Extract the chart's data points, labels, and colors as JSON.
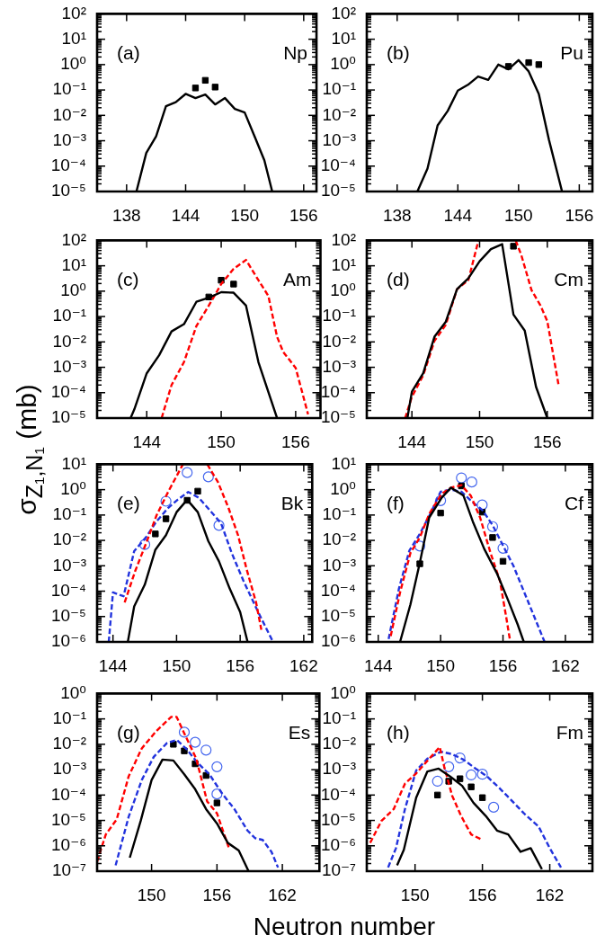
{
  "chart_data": [
    {
      "type": "line",
      "annotations": [
        "(a)",
        "Np"
      ],
      "log": "y",
      "xlim": [
        135,
        157.3
      ],
      "xticks": [
        138,
        144,
        150,
        156
      ],
      "ylim": [
        1e-05,
        100
      ],
      "yticks": [
        {
          "value": 1e-05,
          "label": "10⁻⁵"
        },
        {
          "value": 0.0001,
          "label": "10⁻⁴"
        },
        {
          "value": 0.001,
          "label": "10⁻³"
        },
        {
          "value": 0.01,
          "label": "10⁻²"
        },
        {
          "value": 0.1,
          "label": "10⁻¹"
        },
        {
          "value": 1,
          "label": "10⁰"
        },
        {
          "value": 10,
          "label": "10¹"
        },
        {
          "value": 100,
          "label": "10²"
        }
      ],
      "series": [
        {
          "type": "line",
          "color": "#000000",
          "line_style": "solid",
          "x": [
            139,
            140,
            141,
            142,
            143,
            144,
            145,
            146,
            147,
            148,
            149,
            150,
            151,
            152,
            152.8
          ],
          "values": [
            1e-05,
            0.00033,
            0.0015,
            0.023,
            0.033,
            0.07,
            0.048,
            0.066,
            0.027,
            0.048,
            0.018,
            0.013,
            0.0015,
            0.00017,
            1e-05
          ]
        },
        {
          "type": "scatter",
          "color": "#000000",
          "marker": "square",
          "x": [
            145,
            146,
            147
          ],
          "values": [
            0.12,
            0.24,
            0.13
          ]
        }
      ]
    },
    {
      "type": "line",
      "annotations": [
        "(b)",
        "Pu"
      ],
      "log": "y",
      "xlim": [
        135,
        157.3
      ],
      "xticks": [
        138,
        144,
        150,
        156
      ],
      "ylim": [
        1e-05,
        100
      ],
      "yticks": [
        {
          "value": 1e-05,
          "label": "10⁻⁵"
        },
        {
          "value": 0.0001,
          "label": "10⁻⁴"
        },
        {
          "value": 0.001,
          "label": "10⁻³"
        },
        {
          "value": 0.01,
          "label": "10⁻²"
        },
        {
          "value": 0.1,
          "label": "10⁻¹"
        },
        {
          "value": 1,
          "label": "10⁰"
        },
        {
          "value": 10,
          "label": "10¹"
        },
        {
          "value": 100,
          "label": "10²"
        }
      ],
      "series": [
        {
          "type": "line",
          "color": "#000000",
          "line_style": "solid",
          "x": [
            140,
            141,
            142,
            143,
            144,
            145,
            146,
            147,
            148,
            149,
            150,
            151,
            152,
            153,
            154.3
          ],
          "values": [
            1e-05,
            8e-05,
            0.004,
            0.015,
            0.095,
            0.16,
            0.34,
            0.25,
            1.0,
            0.65,
            1.5,
            0.54,
            0.07,
            0.0011,
            1e-05
          ]
        },
        {
          "type": "scatter",
          "color": "#000000",
          "marker": "square",
          "x": [
            149,
            151,
            152
          ],
          "values": [
            0.85,
            1.2,
            1.0
          ]
        }
      ]
    },
    {
      "type": "line",
      "annotations": [
        "(c)",
        "Am"
      ],
      "log": "y",
      "xlim": [
        140,
        158
      ],
      "xticks": [
        144,
        150,
        156
      ],
      "ylim": [
        1e-05,
        100
      ],
      "yticks": [
        {
          "value": 1e-05,
          "label": "10⁻⁵"
        },
        {
          "value": 0.0001,
          "label": "10⁻⁴"
        },
        {
          "value": 0.001,
          "label": "10⁻³"
        },
        {
          "value": 0.01,
          "label": "10⁻²"
        },
        {
          "value": 0.1,
          "label": "10⁻¹"
        },
        {
          "value": 1,
          "label": "10⁰"
        },
        {
          "value": 10,
          "label": "10¹"
        },
        {
          "value": 100,
          "label": "10²"
        }
      ],
      "series": [
        {
          "type": "line",
          "color": "#000000",
          "line_style": "solid",
          "x": [
            142.7,
            143,
            144,
            145,
            146,
            147,
            148,
            149,
            150,
            151,
            152,
            153,
            154.5
          ],
          "values": [
            1e-05,
            2.2e-05,
            0.00058,
            0.003,
            0.026,
            0.05,
            0.38,
            0.55,
            0.91,
            0.87,
            0.27,
            0.0016,
            1e-05
          ]
        },
        {
          "type": "line",
          "color": "#ff0000",
          "line_style": "dashed",
          "x": [
            145.2,
            146,
            147,
            148,
            149,
            150,
            151,
            152,
            153,
            153.8,
            154.5,
            155,
            156,
            157
          ],
          "values": [
            1e-05,
            0.0002,
            0.0016,
            0.042,
            0.27,
            1.9,
            7.6,
            17,
            2.7,
            0.65,
            0.016,
            0.004,
            0.00095,
            1.4e-05
          ]
        },
        {
          "type": "scatter",
          "color": "#000000",
          "marker": "square",
          "x": [
            149,
            150,
            151
          ],
          "values": [
            0.59,
            2.7,
            1.9
          ]
        }
      ]
    },
    {
      "type": "line",
      "annotations": [
        "(d)",
        "Cm"
      ],
      "log": "y",
      "xlim": [
        140,
        160
      ],
      "xticks": [
        144,
        150,
        156
      ],
      "ylim": [
        1e-05,
        100
      ],
      "yticks": [
        {
          "value": 1e-05,
          "label": "10⁻⁵"
        },
        {
          "value": 0.0001,
          "label": "10⁻⁴"
        },
        {
          "value": 0.001,
          "label": "10⁻³"
        },
        {
          "value": 0.01,
          "label": "10⁻²"
        },
        {
          "value": 0.1,
          "label": "10⁻¹"
        },
        {
          "value": 1,
          "label": "10⁰"
        },
        {
          "value": 10,
          "label": "10¹"
        },
        {
          "value": 100,
          "label": "10²"
        }
      ],
      "series": [
        {
          "type": "line",
          "color": "#000000",
          "line_style": "solid",
          "x": [
            143.6,
            144,
            145,
            146,
            147,
            148,
            149,
            150,
            151,
            152,
            153,
            154,
            155,
            156
          ],
          "values": [
            1e-05,
            0.00011,
            0.00058,
            0.016,
            0.062,
            1.2,
            3.2,
            15,
            45,
            71,
            0.12,
            0.028,
            0.00017,
            1e-05
          ]
        },
        {
          "type": "line",
          "color": "#ff0000",
          "line_style": "dashed",
          "x": [
            143.4,
            144,
            145,
            146,
            147,
            148,
            149,
            149.9,
            150,
            151,
            152,
            153.2,
            153.7,
            154.6,
            155.4,
            156,
            157
          ],
          "values": [
            1e-05,
            6.9e-05,
            0.00048,
            0.011,
            0.047,
            1.2,
            2.7,
            100,
            null,
            null,
            null,
            100,
            26,
            1.1,
            0.27,
            0.066,
            0.0002
          ]
        },
        {
          "type": "scatter",
          "color": "#000000",
          "marker": "square",
          "x": [
            153
          ],
          "values": [
            59
          ]
        }
      ]
    },
    {
      "type": "line",
      "annotations": [
        "(e)",
        "Bk"
      ],
      "ylabel": "σ$_{Z₁,N₁}$ (mb)",
      "log": "y",
      "xlim": [
        142.5,
        162.8
      ],
      "xticks": [
        144,
        150,
        156,
        162
      ],
      "ylim": [
        1e-06,
        10
      ],
      "yticks": [
        {
          "value": 1e-06,
          "label": "10⁻⁶"
        },
        {
          "value": 1e-05,
          "label": "10⁻⁵"
        },
        {
          "value": 0.0001,
          "label": "10⁻⁴"
        },
        {
          "value": 0.001,
          "label": "10⁻³"
        },
        {
          "value": 0.01,
          "label": "10⁻²"
        },
        {
          "value": 0.1,
          "label": "10⁻¹"
        },
        {
          "value": 1,
          "label": "10⁰"
        },
        {
          "value": 10,
          "label": "10¹"
        }
      ],
      "series": [
        {
          "type": "line",
          "color": "#000000",
          "line_style": "solid",
          "x": [
            145.4,
            146,
            147,
            148,
            149,
            150,
            151,
            152,
            153,
            154,
            155,
            156,
            156.7
          ],
          "values": [
            1e-06,
            2.5e-05,
            0.00018,
            0.0043,
            0.016,
            0.13,
            0.4,
            0.13,
            0.0093,
            0.0015,
            0.00013,
            1.5e-05,
            1e-06
          ]
        },
        {
          "type": "line",
          "color": "#ff0000",
          "line_style": "dashed",
          "x": [
            145.1,
            146.1,
            147.2,
            148.1,
            149.2,
            150.6,
            151.7,
            152.9,
            153.9,
            154.9,
            155.8,
            156.6,
            157.5,
            158.0
          ],
          "values": [
            3.6e-05,
            0.00063,
            0.0093,
            0.095,
            0.81,
            10,
            null,
            10,
            2.0,
            0.19,
            0.016,
            0.00076,
            3.6e-05,
            3e-06
          ]
        },
        {
          "type": "line",
          "color": "#2233dd",
          "line_style": "dashed",
          "x": [
            143.6,
            144,
            145,
            146,
            147.1,
            148.1,
            149.2,
            150.1,
            151.1,
            152.1,
            153.1,
            154.2,
            155.2,
            156.3,
            157.7,
            159.1
          ],
          "values": [
            1e-06,
            8.9e-05,
            6.3e-05,
            0.0038,
            0.013,
            0.055,
            0.19,
            0.4,
            0.81,
            0.48,
            0.16,
            0.047,
            0.0032,
            0.00026,
            1.5e-05,
            1e-06
          ]
        },
        {
          "type": "scatter",
          "color": "#000000",
          "marker": "square",
          "x": [
            148,
            149,
            151,
            152
          ],
          "values": [
            0.018,
            0.071,
            0.38,
            0.87
          ]
        },
        {
          "type": "scatter",
          "color": "#4466ee",
          "marker": "circle",
          "x": [
            147,
            149,
            151,
            153,
            154
          ],
          "values": [
            0.0069,
            0.35,
            4.7,
            3.2,
            0.039
          ]
        }
      ]
    },
    {
      "type": "line",
      "annotations": [
        "(f)",
        "Cf"
      ],
      "log": "y",
      "xlim": [
        142.9,
        164.6
      ],
      "xticks": [
        144,
        150,
        156,
        162
      ],
      "ylim": [
        1e-06,
        10
      ],
      "yticks": [
        {
          "value": 1e-06,
          "label": "10⁻⁶"
        },
        {
          "value": 1e-05,
          "label": "10⁻⁵"
        },
        {
          "value": 0.0001,
          "label": "10⁻⁴"
        },
        {
          "value": 0.001,
          "label": "10⁻³"
        },
        {
          "value": 0.01,
          "label": "10⁻²"
        },
        {
          "value": 0.1,
          "label": "10⁻¹"
        },
        {
          "value": 1,
          "label": "10⁰"
        },
        {
          "value": 10,
          "label": "10¹"
        }
      ],
      "series": [
        {
          "type": "line",
          "color": "#000000",
          "line_style": "solid",
          "x": [
            146.1,
            147.1,
            148,
            148.9,
            150.1,
            151,
            152.2,
            153.1,
            154.2,
            155.4,
            156.5,
            157.4,
            158
          ],
          "values": [
            1e-06,
            3e-05,
            0.0013,
            0.079,
            0.48,
            1.2,
            0.58,
            0.055,
            0.0046,
            0.00052,
            4.3e-05,
            5e-06,
            1e-06
          ]
        },
        {
          "type": "line",
          "color": "#ff0000",
          "line_style": "dashed",
          "x": [
            145.2,
            146.1,
            147.1,
            148,
            148.9,
            150.1,
            151,
            152,
            152.9,
            153.8,
            154.8,
            155.7,
            156.3,
            156.7
          ],
          "values": [
            1.7e-06,
            8.9e-05,
            0.0032,
            0.013,
            0.11,
            0.68,
            1.2,
            1.5,
            0.58,
            0.079,
            0.0032,
            0.00026,
            1e-05,
            1e-06
          ]
        },
        {
          "type": "line",
          "color": "#2233dd",
          "line_style": "dashed",
          "x": [
            145,
            146,
            147,
            148,
            149,
            150,
            151,
            152,
            153,
            154,
            155,
            156,
            157,
            158,
            159,
            160
          ],
          "values": [
            1.3e-06,
            0.00013,
            0.004,
            0.018,
            0.11,
            0.83,
            1.0,
            0.83,
            0.34,
            0.16,
            0.04,
            0.0063,
            0.001,
            0.0001,
            1e-05,
            1e-06
          ]
        },
        {
          "type": "scatter",
          "color": "#000000",
          "marker": "square",
          "x": [
            148,
            150,
            152,
            154,
            155,
            156
          ],
          "values": [
            0.0012,
            0.12,
            1.4,
            0.13,
            0.013,
            0.0015
          ]
        },
        {
          "type": "scatter",
          "color": "#4466ee",
          "marker": "circle",
          "x": [
            148,
            150,
            152,
            153,
            154,
            155,
            156
          ],
          "values": [
            0.006,
            0.37,
            2.9,
            2.0,
            0.25,
            0.035,
            0.0049
          ]
        }
      ]
    },
    {
      "type": "line",
      "annotations": [
        "(g)",
        "Es"
      ],
      "xlabel": "Neutron number",
      "log": "y",
      "xlim": [
        145,
        165.4
      ],
      "xticks": [
        150,
        156,
        162
      ],
      "ylim": [
        1e-07,
        1
      ],
      "yticks": [
        {
          "value": 1e-07,
          "label": "10⁻⁷"
        },
        {
          "value": 1e-06,
          "label": "10⁻⁶"
        },
        {
          "value": 1e-05,
          "label": "10⁻⁵"
        },
        {
          "value": 0.0001,
          "label": "10⁻⁴"
        },
        {
          "value": 0.001,
          "label": "10⁻³"
        },
        {
          "value": 0.01,
          "label": "10⁻²"
        },
        {
          "value": 0.1,
          "label": "10⁻¹"
        },
        {
          "value": 1,
          "label": "10⁰"
        }
      ],
      "series": [
        {
          "type": "line",
          "color": "#000000",
          "line_style": "solid",
          "x": [
            148,
            149,
            150,
            151,
            152,
            153,
            154,
            155,
            156,
            157,
            158,
            158.9
          ],
          "values": [
            3.4e-07,
            9.5e-06,
            0.00039,
            0.0025,
            0.0023,
            0.00066,
            0.00017,
            2.8e-05,
            7.6e-06,
            1.3e-06,
            6.5e-07,
            1e-07
          ]
        },
        {
          "type": "line",
          "color": "#ff0000",
          "line_style": "dashed",
          "x": [
            145,
            145.8,
            146.8,
            147.9,
            149.1,
            150.4,
            151.8,
            152.3,
            153,
            154.1,
            155.1,
            156,
            157.1
          ],
          "values": [
            2.4e-07,
            2.8e-06,
            1.1e-05,
            0.00055,
            0.0069,
            0.032,
            0.12,
            0.12,
            0.027,
            0.0027,
            5.6e-05,
            1.9e-05,
            8.1e-07
          ]
        },
        {
          "type": "line",
          "color": "#2233dd",
          "line_style": "dashed",
          "x": [
            146.7,
            147.9,
            149.1,
            150.2,
            151.4,
            152.3,
            153.2,
            154.2,
            155.3,
            156.5,
            157.6,
            158.8,
            159.5,
            160.2,
            161,
            161.6
          ],
          "values": [
            1.7e-07,
            1.4e-05,
            0.00039,
            0.0032,
            0.011,
            0.015,
            0.0065,
            0.0019,
            0.00066,
            0.00011,
            2.8e-05,
            4e-06,
            2e-06,
            1.7e-06,
            5.8e-07,
            1.4e-07
          ]
        },
        {
          "type": "scatter",
          "color": "#000000",
          "marker": "square",
          "x": [
            152,
            153,
            154,
            155,
            156
          ],
          "values": [
            0.01,
            0.0055,
            0.0017,
            0.00059,
            4.9e-05
          ]
        },
        {
          "type": "scatter",
          "color": "#4466ee",
          "marker": "circle",
          "x": [
            153,
            154,
            155,
            156,
            156
          ],
          "values": [
            0.03,
            0.012,
            0.0059,
            0.0013,
            0.00011
          ]
        }
      ]
    },
    {
      "type": "line",
      "annotations": [
        "(h)",
        "Fm"
      ],
      "log": "y",
      "xlim": [
        145.7,
        165.8
      ],
      "xticks": [
        150,
        156,
        162
      ],
      "ylim": [
        1e-07,
        1
      ],
      "yticks": [
        {
          "value": 1e-07,
          "label": "10⁻⁷"
        },
        {
          "value": 1e-06,
          "label": "10⁻⁶"
        },
        {
          "value": 1e-05,
          "label": "10⁻⁵"
        },
        {
          "value": 0.0001,
          "label": "10⁻⁴"
        },
        {
          "value": 0.001,
          "label": "10⁻³"
        },
        {
          "value": 0.01,
          "label": "10⁻²"
        },
        {
          "value": 0.1,
          "label": "10⁻¹"
        },
        {
          "value": 1,
          "label": "10⁰"
        }
      ],
      "series": [
        {
          "type": "line",
          "color": "#000000",
          "line_style": "solid",
          "x": [
            148.4,
            149,
            150.1,
            151.1,
            152.1,
            153.1,
            154.2,
            155.2,
            156.3,
            157.3,
            158.3,
            159.4,
            160.3,
            161.3
          ],
          "values": [
            1.7e-07,
            6.9e-07,
            7.9e-05,
            0.00085,
            0.0011,
            0.00055,
            0.00023,
            5e-05,
            1.5e-05,
            4e-06,
            2.8e-06,
            5.8e-07,
            8.1e-07,
            1.2e-07
          ]
        },
        {
          "type": "line",
          "color": "#ff0000",
          "line_style": "dashed",
          "x": [
            146,
            147,
            148.1,
            149.1,
            150.1,
            151.2,
            152.2,
            152.6,
            153.3,
            154.1,
            155,
            156
          ],
          "values": [
            1.3e-06,
            9.5e-06,
            2.8e-05,
            0.00028,
            0.00071,
            0.0025,
            0.0078,
            0.0013,
            9.5e-05,
            1.5e-05,
            2.8e-06,
            1.7e-06
          ]
        },
        {
          "type": "line",
          "color": "#2233dd",
          "line_style": "dashed",
          "x": [
            147.6,
            148.3,
            149.1,
            150.1,
            151.1,
            152.3,
            153.3,
            154.3,
            155.4,
            156.4,
            157.5,
            158.5,
            159.7,
            161,
            162,
            163
          ],
          "values": [
            1.4e-07,
            8.1e-07,
            2.8e-05,
            0.00093,
            0.0027,
            0.0051,
            0.0041,
            0.0025,
            0.0011,
            0.00055,
            0.00019,
            6.8e-05,
            1.9e-05,
            5.8e-06,
            8.1e-07,
            1.4e-07
          ]
        },
        {
          "type": "scatter",
          "color": "#000000",
          "marker": "square",
          "x": [
            152,
            153,
            154,
            155,
            156
          ],
          "values": [
            0.0001,
            0.00035,
            0.00044,
            0.00021,
            7.9e-05
          ]
        },
        {
          "type": "scatter",
          "color": "#4466ee",
          "marker": "circle",
          "x": [
            152,
            153,
            154,
            155,
            156,
            157
          ],
          "values": [
            0.00035,
            0.0013,
            0.0029,
            0.00062,
            0.00066,
            3.3e-05
          ]
        }
      ]
    }
  ]
}
